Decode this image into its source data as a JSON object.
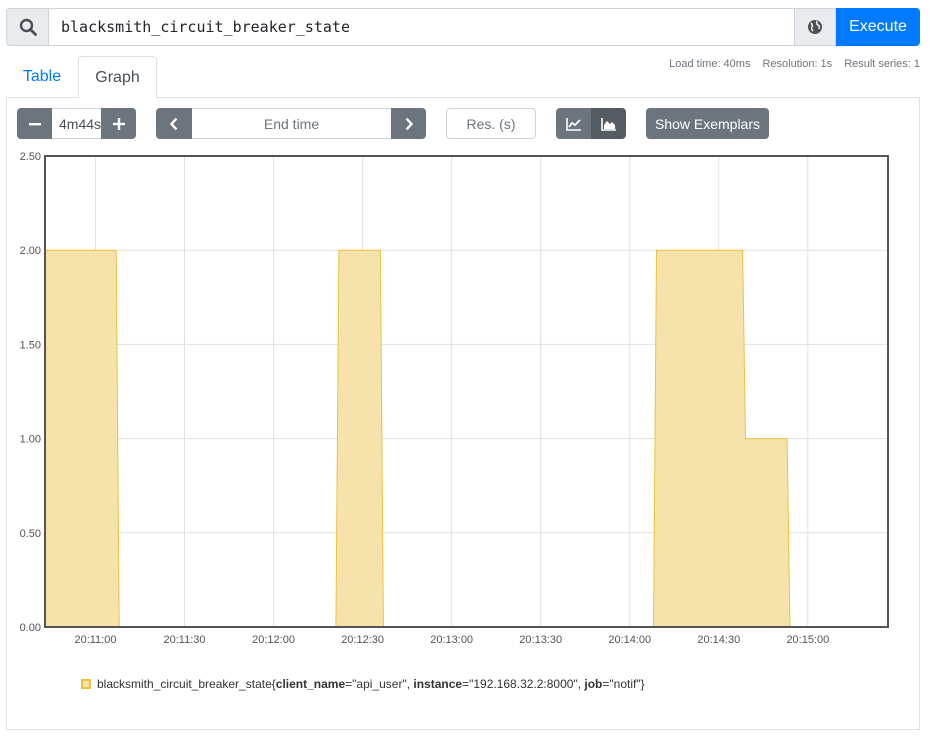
{
  "query": {
    "expression": "blacksmith_circuit_breaker_state",
    "execute_label": "Execute",
    "search_icon": "search-icon",
    "metrics_icon": "globe-icon"
  },
  "stats": {
    "load_time": "Load time: 40ms",
    "resolution": "Resolution: 1s",
    "result_series": "Result series: 1"
  },
  "tabs": {
    "table": "Table",
    "graph": "Graph"
  },
  "controls": {
    "range_value": "4m44s",
    "end_time_placeholder": "End time",
    "resolution_placeholder": "Res. (s)",
    "show_exemplars": "Show Exemplars"
  },
  "legend": {
    "metric": "blacksmith_circuit_breaker_state",
    "open": "{",
    "close": "}",
    "labels": [
      {
        "name": "client_name",
        "value": "\"api_user\""
      },
      {
        "name": "instance",
        "value": "\"192.168.32.2:8000\""
      },
      {
        "name": "job",
        "value": "\"notif\""
      }
    ],
    "color": "#edc240",
    "fill": "#f6e3ab"
  },
  "chart_data": {
    "type": "area",
    "title": "",
    "xlabel": "",
    "ylabel": "",
    "ylim": [
      0,
      2.5
    ],
    "y_ticks": [
      "0.00",
      "0.50",
      "1.00",
      "1.50",
      "2.00",
      "2.50"
    ],
    "x_ticks": [
      "20:11:00",
      "20:11:30",
      "20:12:00",
      "20:12:30",
      "20:13:00",
      "20:13:30",
      "20:14:00",
      "20:14:30",
      "20:15:00"
    ],
    "x_tick_seconds": [
      60,
      90,
      120,
      150,
      180,
      210,
      240,
      270,
      300
    ],
    "x_range_seconds": [
      43,
      327
    ],
    "x_origin_time": "20:10:00",
    "grid": true,
    "stacked": true,
    "series": [
      {
        "name": "blacksmith_circuit_breaker_state{client_name=\"api_user\", instance=\"192.168.32.2:8000\", job=\"notif\"}",
        "color": "#edc240",
        "points": [
          [
            43,
            2
          ],
          [
            67,
            2
          ],
          [
            68,
            0
          ],
          [
            141,
            0
          ],
          [
            142,
            2
          ],
          [
            156,
            2
          ],
          [
            157,
            0
          ],
          [
            203,
            0
          ],
          [
            248,
            0
          ],
          [
            249,
            2
          ],
          [
            278,
            2
          ],
          [
            279,
            1
          ],
          [
            293,
            1
          ],
          [
            294,
            0
          ],
          [
            327,
            0
          ]
        ]
      }
    ]
  }
}
